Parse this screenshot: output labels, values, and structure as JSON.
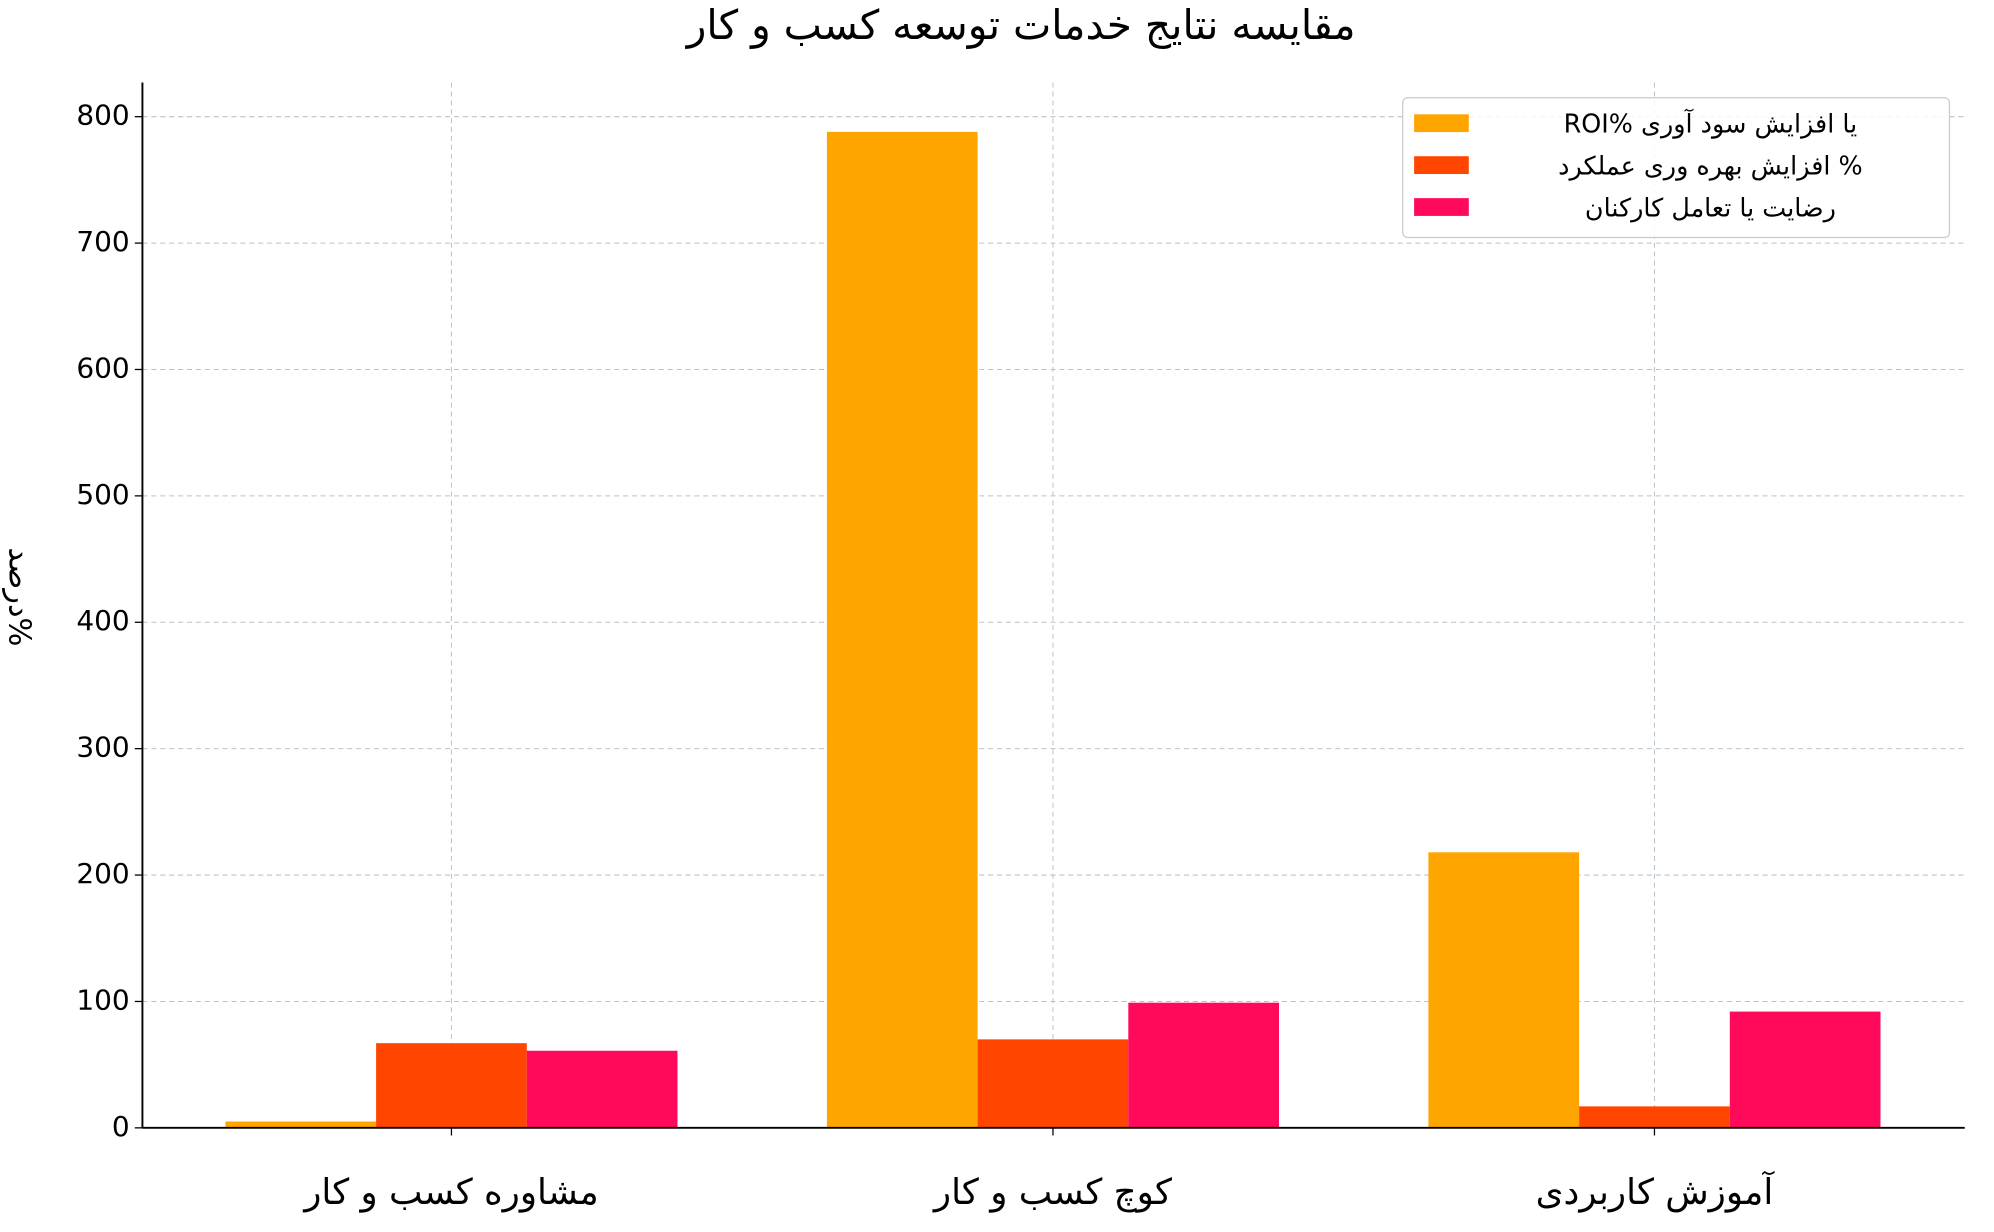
{
  "chart_data": {
    "type": "bar",
    "title": "مقایسه نتایج خدمات توسعه کسب و کار",
    "y_label": "درصد%",
    "categories": [
      "مشاوره کسب و کار",
      "کوچ کسب و کار",
      "آموزش کاربردی"
    ],
    "series": [
      {
        "name": "ROI% یا افزایش سود آوری",
        "color": "#ffa500",
        "values": [
          5,
          788,
          218
        ]
      },
      {
        "name": "افزایش بهره وری عملکرد %",
        "color": "#ff4500",
        "values": [
          67,
          70,
          17
        ]
      },
      {
        "name": "رضایت یا تعامل کارکنان",
        "color": "#ff0a5a",
        "values": [
          61,
          99,
          92
        ]
      }
    ],
    "ylim": [
      0,
      827
    ],
    "yticks": [
      0,
      100,
      200,
      300,
      400,
      500,
      600,
      700,
      800
    ],
    "grid": true,
    "legend": "upper-right"
  }
}
